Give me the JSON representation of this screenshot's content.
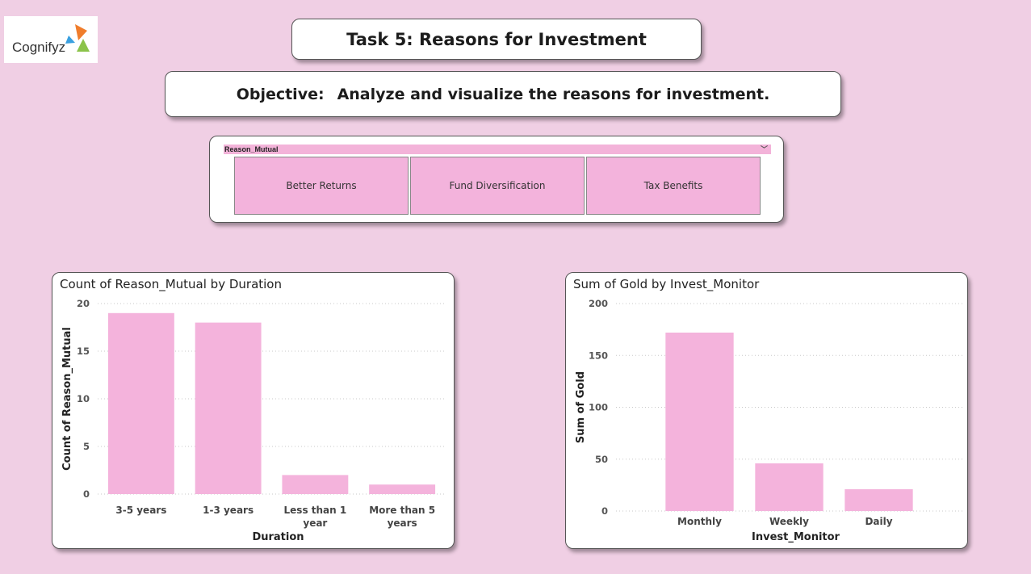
{
  "logo": {
    "text": "Cognifyz"
  },
  "header": {
    "title": "Task 5: Reasons for Investment",
    "objective_label": "Objective:",
    "objective_text": "Analyze and visualize the reasons for investment."
  },
  "slicer": {
    "header": "Reason_Mutual",
    "chevron": "﹀",
    "options": [
      "Better Returns",
      "Fund Diversification",
      "Tax Benefits"
    ]
  },
  "colors": {
    "bar": "#f4b3dc",
    "background": "#f0cfe4"
  },
  "chart_data": [
    {
      "type": "bar",
      "title": "Count of Reason_Mutual by Duration",
      "xlabel": "Duration",
      "ylabel": "Count of Reason_Mutual",
      "categories": [
        [
          "3-5 years"
        ],
        [
          "1-3 years"
        ],
        [
          "Less than 1",
          "year"
        ],
        [
          "More than 5",
          "years"
        ]
      ],
      "values": [
        19,
        18,
        2,
        1
      ],
      "ylim": [
        0,
        20
      ],
      "yticks": [
        0,
        5,
        10,
        15,
        20
      ],
      "grid": true
    },
    {
      "type": "bar",
      "title": "Sum of Gold by Invest_Monitor",
      "xlabel": "Invest_Monitor",
      "ylabel": "Sum of Gold",
      "categories": [
        [
          "Monthly"
        ],
        [
          "Weekly"
        ],
        [
          "Daily"
        ]
      ],
      "values": [
        172,
        46,
        21
      ],
      "ylim": [
        0,
        200
      ],
      "yticks": [
        0,
        50,
        100,
        150,
        200
      ],
      "grid": true
    }
  ]
}
